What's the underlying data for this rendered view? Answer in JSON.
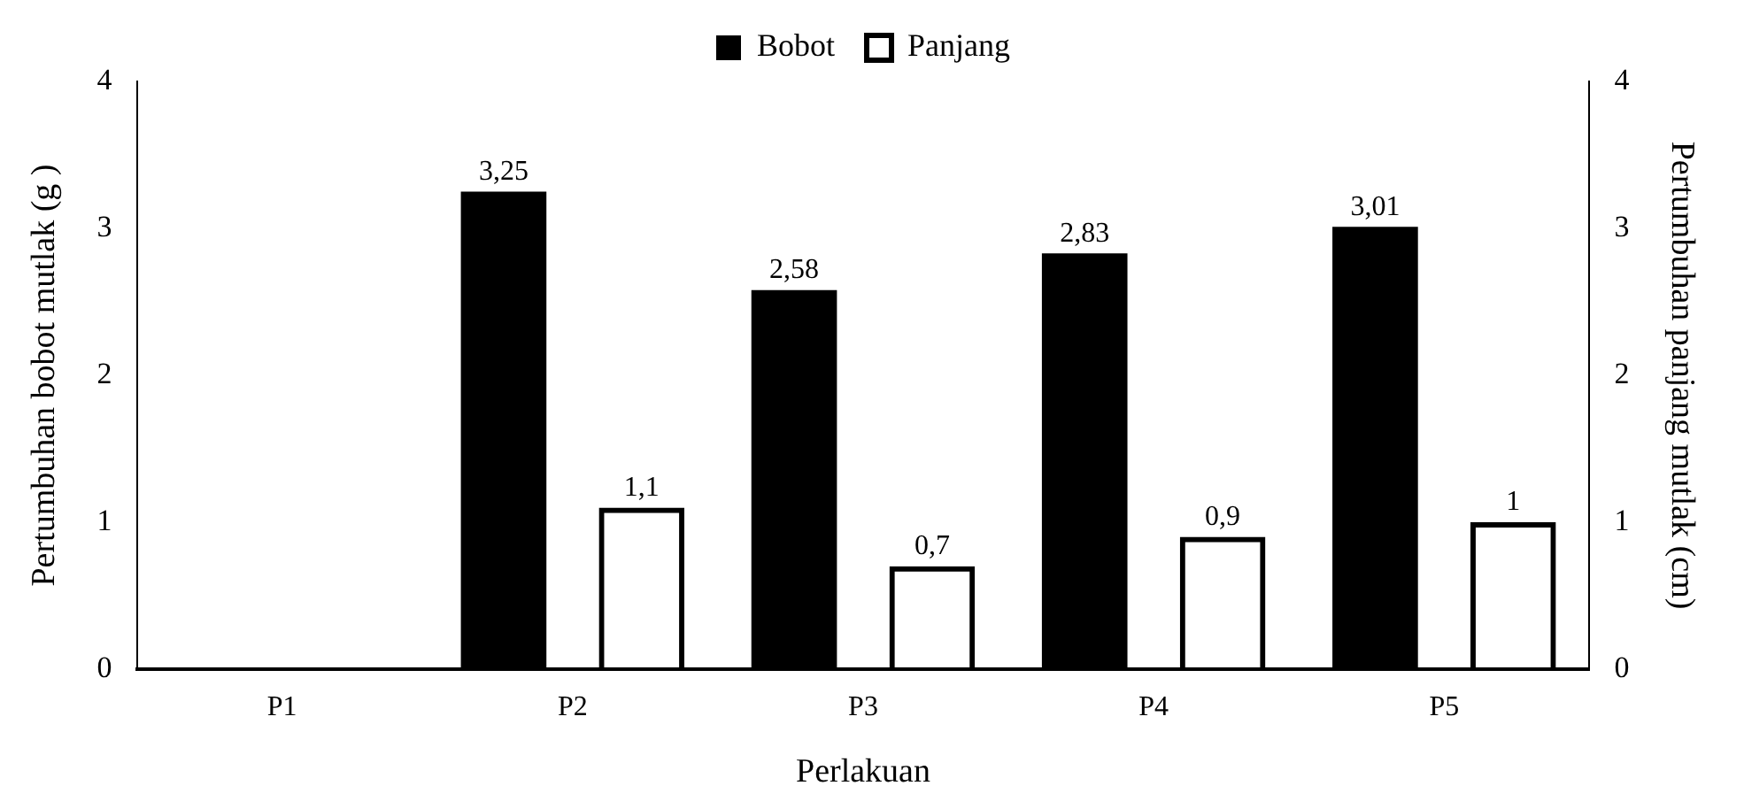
{
  "chart_data": {
    "type": "bar",
    "xlabel": "Perlakuan",
    "ylabel": "Pertumbuhan bobot mutlak (g )",
    "y2label": "Pertumbuhan panjang mutlak (cm)",
    "categories": [
      "P1",
      "P2",
      "P3",
      "P4",
      "P5"
    ],
    "series": [
      {
        "name": "Bobot",
        "color": "#000000",
        "values": [
          null,
          3.25,
          2.58,
          2.83,
          3.01
        ],
        "value_labels": [
          null,
          "3,25",
          "2,58",
          "2,83",
          "3,01"
        ]
      },
      {
        "name": "Panjang",
        "color": "#000000",
        "axis": "y2",
        "values": [
          null,
          1.1,
          0.7,
          0.9,
          1
        ],
        "value_labels": [
          null,
          "1,1",
          "0,7",
          "0,9",
          "1"
        ]
      }
    ],
    "ylim": [
      0,
      4
    ],
    "yticks": [
      0,
      1,
      2,
      3,
      4
    ],
    "y2lim": [
      0,
      4
    ],
    "y2ticks": [
      0,
      1,
      2,
      3,
      4
    ],
    "grid": false,
    "legend": "top"
  }
}
